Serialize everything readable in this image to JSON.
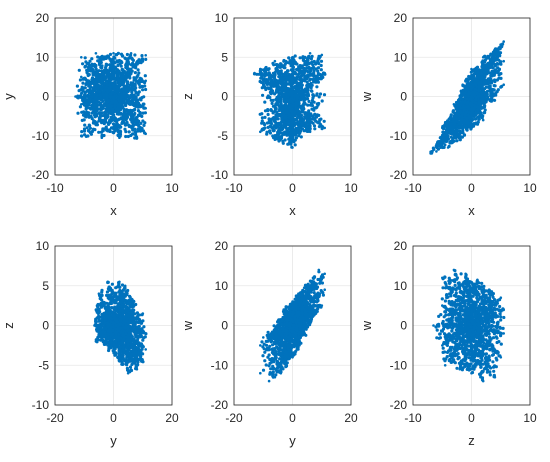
{
  "chart_data": [
    {
      "type": "scatter",
      "xlabel": "x",
      "ylabel": "y",
      "xlim": [
        -10,
        10
      ],
      "ylim": [
        -20,
        20
      ],
      "xticks": [
        "-10",
        "0",
        "10"
      ],
      "yticks": [
        "-20",
        "-10",
        "0",
        "10",
        "20"
      ],
      "grid": true,
      "color": "#0072BD",
      "points": [
        [
          -5.5,
          -10
        ],
        [
          -5.5,
          -2
        ],
        [
          -5.5,
          5
        ],
        [
          -5.5,
          10
        ],
        [
          -3,
          11
        ],
        [
          0,
          11
        ],
        [
          3,
          11
        ],
        [
          5.5,
          10.5
        ],
        [
          5.5,
          4
        ],
        [
          5.5,
          -3
        ],
        [
          5.5,
          -9.5
        ],
        [
          4,
          -10.5
        ],
        [
          1,
          -10.5
        ],
        [
          -2,
          -10.5
        ],
        [
          -6.5,
          0
        ]
      ]
    },
    {
      "type": "scatter",
      "xlabel": "x",
      "ylabel": "z",
      "xlim": [
        -10,
        10
      ],
      "ylim": [
        -10,
        10
      ],
      "xticks": [
        "-10",
        "0",
        "10"
      ],
      "yticks": [
        "-10",
        "-5",
        "0",
        "5",
        "10"
      ],
      "grid": true,
      "color": "#0072BD",
      "points": [
        [
          -5.5,
          3.5
        ],
        [
          -5.5,
          -4.5
        ],
        [
          -3,
          4.5
        ],
        [
          0,
          5
        ],
        [
          3,
          5.5
        ],
        [
          5,
          5.3
        ],
        [
          5.5,
          3
        ],
        [
          5.5,
          -4
        ],
        [
          3,
          -4.5
        ],
        [
          0,
          -5
        ],
        [
          -3,
          -5.5
        ],
        [
          -0.5,
          -6
        ],
        [
          0,
          -6.5
        ],
        [
          -6.5,
          3
        ]
      ]
    },
    {
      "type": "scatter",
      "xlabel": "x",
      "ylabel": "w",
      "xlim": [
        -10,
        10
      ],
      "ylim": [
        -20,
        20
      ],
      "xticks": [
        "-10",
        "0",
        "10"
      ],
      "yticks": [
        "-20",
        "-10",
        "0",
        "10",
        "20"
      ],
      "grid": true,
      "color": "#0072BD",
      "points": [
        [
          -6,
          -14
        ],
        [
          -5.5,
          -12
        ],
        [
          -5,
          -8
        ],
        [
          -3,
          -2
        ],
        [
          -1.5,
          3
        ],
        [
          0,
          7
        ],
        [
          2,
          10
        ],
        [
          4,
          12
        ],
        [
          5,
          13
        ],
        [
          5.5,
          14
        ],
        [
          5.5,
          9
        ],
        [
          5.5,
          3
        ],
        [
          4,
          -1
        ],
        [
          2,
          -6
        ],
        [
          0,
          -8
        ],
        [
          -2,
          -11
        ],
        [
          -4,
          -13
        ],
        [
          -7,
          -14.5
        ]
      ]
    },
    {
      "type": "scatter",
      "xlabel": "y",
      "ylabel": "z",
      "xlim": [
        -20,
        20
      ],
      "ylim": [
        -10,
        10
      ],
      "xticks": [
        "-20",
        "0",
        "20"
      ],
      "yticks": [
        "-10",
        "-5",
        "0",
        "5",
        "10"
      ],
      "grid": true,
      "color": "#0072BD",
      "points": [
        [
          -6,
          2
        ],
        [
          -6,
          -2
        ],
        [
          -5,
          4
        ],
        [
          -2,
          5.5
        ],
        [
          2,
          5.5
        ],
        [
          4,
          5
        ],
        [
          7,
          3
        ],
        [
          10,
          1.5
        ],
        [
          11,
          -1
        ],
        [
          11,
          -3
        ],
        [
          10,
          -4.5
        ],
        [
          8,
          -5.5
        ],
        [
          5,
          -6
        ],
        [
          2,
          -4.5
        ],
        [
          -2,
          -2.5
        ],
        [
          -5,
          -1
        ],
        [
          -6.5,
          0
        ]
      ]
    },
    {
      "type": "scatter",
      "xlabel": "y",
      "ylabel": "w",
      "xlim": [
        -20,
        20
      ],
      "ylim": [
        -20,
        20
      ],
      "xticks": [
        "-20",
        "0",
        "20"
      ],
      "yticks": [
        "-20",
        "-10",
        "0",
        "10",
        "20"
      ],
      "grid": true,
      "color": "#0072BD",
      "points": [
        [
          -11,
          -12
        ],
        [
          -11,
          -5
        ],
        [
          -10,
          -3
        ],
        [
          -7,
          -2
        ],
        [
          -5,
          1
        ],
        [
          -3,
          4
        ],
        [
          0,
          6
        ],
        [
          2,
          8
        ],
        [
          4,
          9.5
        ],
        [
          7,
          12
        ],
        [
          9,
          14
        ],
        [
          11,
          13
        ],
        [
          11,
          9
        ],
        [
          10,
          5
        ],
        [
          8,
          3
        ],
        [
          6,
          1
        ],
        [
          4,
          -2
        ],
        [
          2,
          -6
        ],
        [
          0,
          -8
        ],
        [
          -2,
          -10
        ],
        [
          -4,
          -12
        ],
        [
          -6,
          -13
        ],
        [
          -8,
          -14
        ]
      ]
    },
    {
      "type": "scatter",
      "xlabel": "z",
      "ylabel": "w",
      "xlim": [
        -10,
        10
      ],
      "ylim": [
        -20,
        20
      ],
      "xticks": [
        "-10",
        "0",
        "10"
      ],
      "yticks": [
        "-20",
        "-10",
        "0",
        "10",
        "20"
      ],
      "grid": true,
      "color": "#0072BD",
      "points": [
        [
          -5,
          12
        ],
        [
          -5,
          5
        ],
        [
          -5,
          -5
        ],
        [
          -4.5,
          -10
        ],
        [
          -3,
          14
        ],
        [
          -1,
          13
        ],
        [
          1,
          11.5
        ],
        [
          3,
          9
        ],
        [
          5,
          7
        ],
        [
          5.5,
          4
        ],
        [
          5.5,
          -2
        ],
        [
          5,
          -8
        ],
        [
          4,
          -13
        ],
        [
          2,
          -14
        ],
        [
          0,
          -12
        ],
        [
          -2,
          -11
        ],
        [
          -6.5,
          0
        ]
      ]
    }
  ]
}
